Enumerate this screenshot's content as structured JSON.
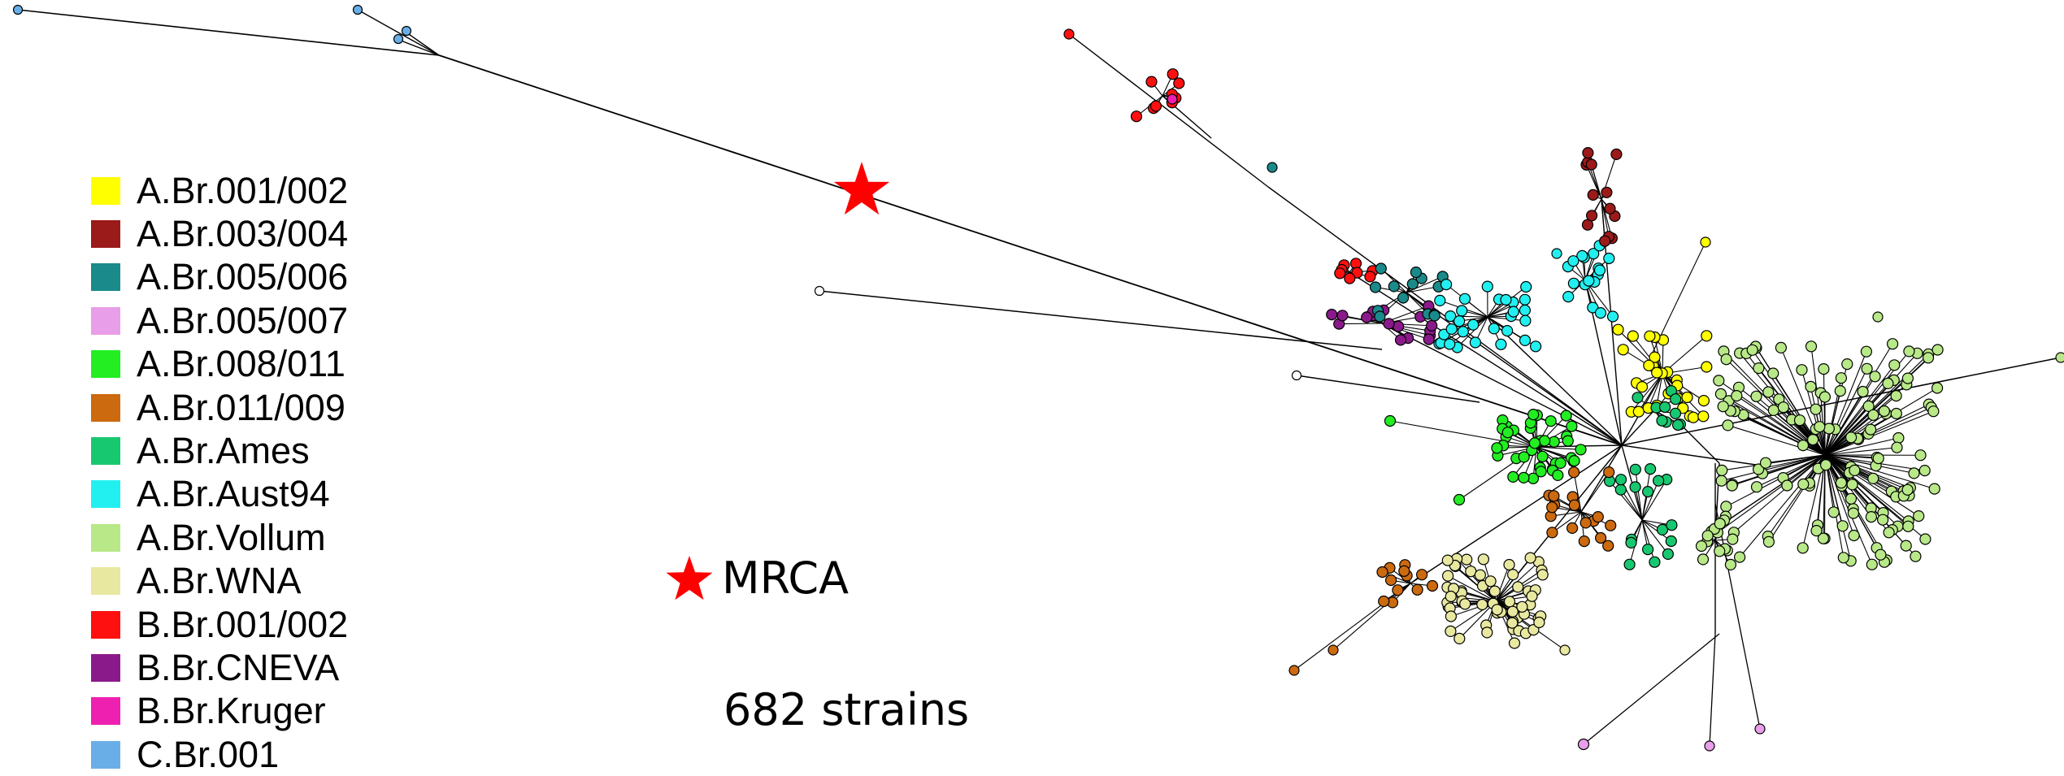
{
  "legend": {
    "items": [
      {
        "label": "A.Br.001/002",
        "color": "#ffff00"
      },
      {
        "label": "A.Br.003/004",
        "color": "#9b1a1a"
      },
      {
        "label": "A.Br.005/006",
        "color": "#1a8a8a"
      },
      {
        "label": "A.Br.005/007",
        "color": "#e89ee8"
      },
      {
        "label": "A.Br.008/011",
        "color": "#22ee22"
      },
      {
        "label": "A.Br.011/009",
        "color": "#cc6a10"
      },
      {
        "label": "A.Br.Ames",
        "color": "#18c870"
      },
      {
        "label": "A.Br.Aust94",
        "color": "#22f0f0"
      },
      {
        "label": "A.Br.Vollum",
        "color": "#b8e888"
      },
      {
        "label": "A.Br.WNA",
        "color": "#e8e8a0"
      },
      {
        "label": "B.Br.001/002",
        "color": "#ff1010"
      },
      {
        "label": "B.Br.CNEVA",
        "color": "#8a1a8a"
      },
      {
        "label": "B.Br.Kruger",
        "color": "#ee20b0"
      },
      {
        "label": "C.Br.001",
        "color": "#6aaee8"
      }
    ]
  },
  "mrca": {
    "label": "MRCA",
    "color": "#ff0000"
  },
  "strain_count": "682 strains"
}
